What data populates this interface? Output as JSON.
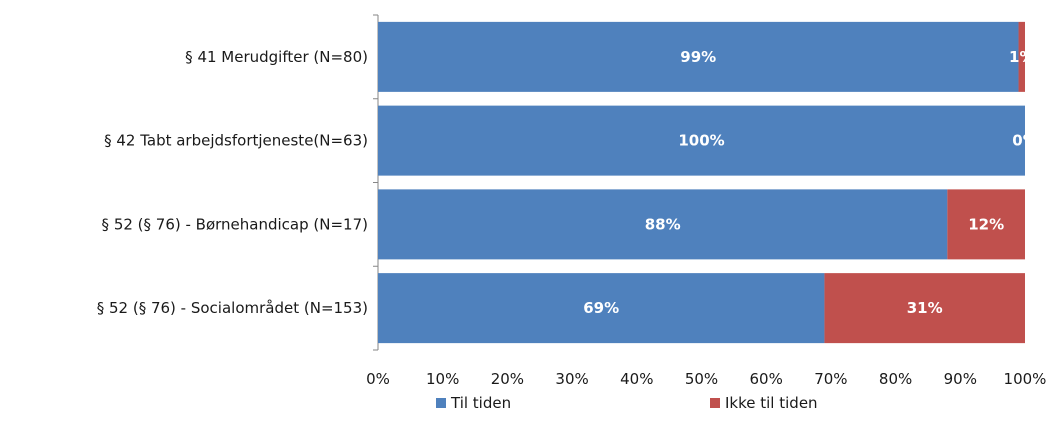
{
  "chart_data": {
    "type": "bar",
    "orientation": "horizontal",
    "stacked": true,
    "categories": [
      "§ 41 Merudgifter (N=80)",
      "§ 42 Tabt arbejdsfortjeneste(N=63)",
      "§ 52 (§ 76) - Børnehandicap (N=17)",
      "§ 52 (§ 76) - Socialområdet (N=153)"
    ],
    "series": [
      {
        "name": "Til tiden",
        "color": "#4f81bd",
        "values": [
          99,
          100,
          88,
          69
        ],
        "labels": [
          "99%",
          "100%",
          "88%",
          "69%"
        ]
      },
      {
        "name": "Ikke til tiden",
        "color": "#c0504d",
        "values": [
          1,
          0,
          12,
          31
        ],
        "labels": [
          "1%",
          "0%",
          "12%",
          "31%"
        ]
      }
    ],
    "xlim": [
      0,
      100
    ],
    "x_ticks": [
      0,
      10,
      20,
      30,
      40,
      50,
      60,
      70,
      80,
      90,
      100
    ],
    "x_tick_labels": [
      "0%",
      "10%",
      "20%",
      "30%",
      "40%",
      "50%",
      "60%",
      "70%",
      "80%",
      "90%",
      "100%"
    ],
    "grid": false,
    "legend_position": "bottom"
  }
}
